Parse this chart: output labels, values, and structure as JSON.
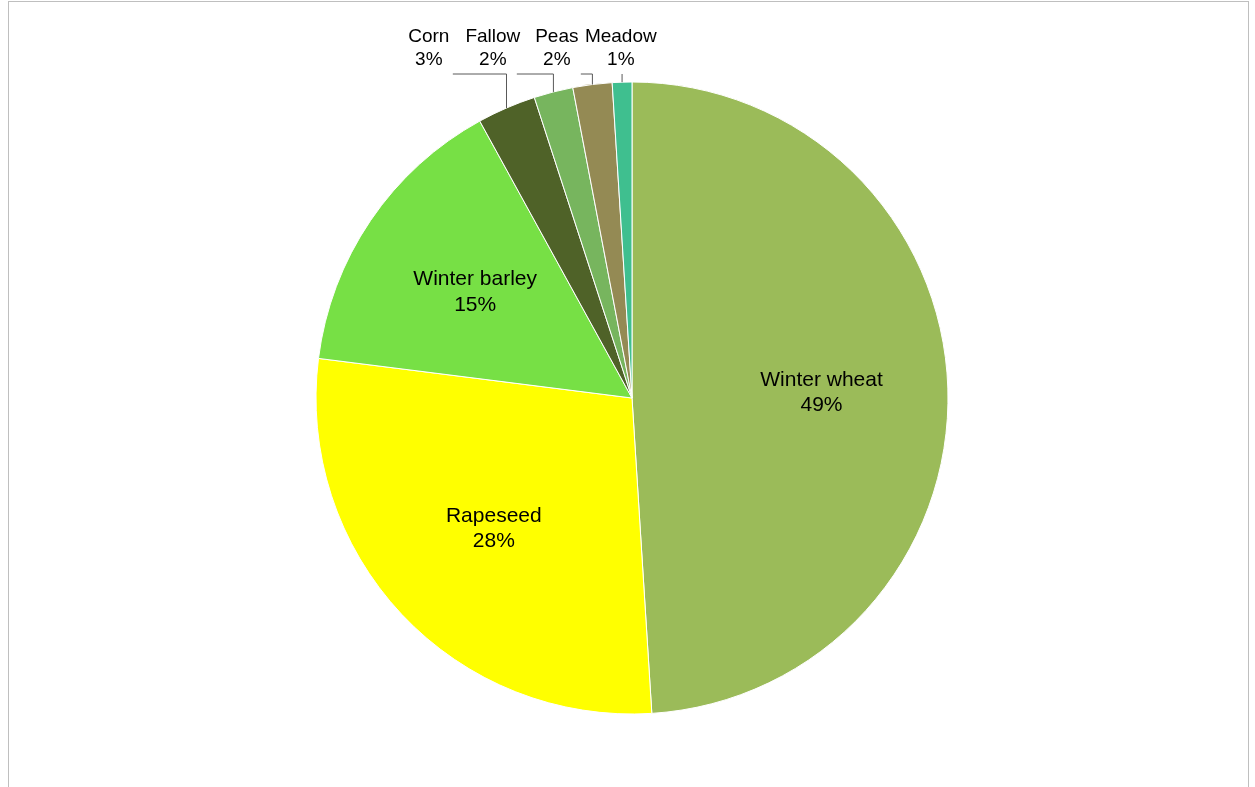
{
  "chart_data": {
    "type": "pie",
    "categories": [
      "Winter wheat",
      "Rapeseed",
      "Winter barley",
      "Corn",
      "Fallow",
      "Peas",
      "Meadow"
    ],
    "values": [
      49,
      28,
      15,
      3,
      2,
      2,
      1
    ],
    "value_labels": [
      "49%",
      "28%",
      "15%",
      "3%",
      "2%",
      "2%",
      "1%"
    ],
    "colors": [
      "#9bbb59",
      "#ffff00",
      "#77e045",
      "#4f6228",
      "#77b55e",
      "#948a54",
      "#3fbf8f"
    ]
  }
}
